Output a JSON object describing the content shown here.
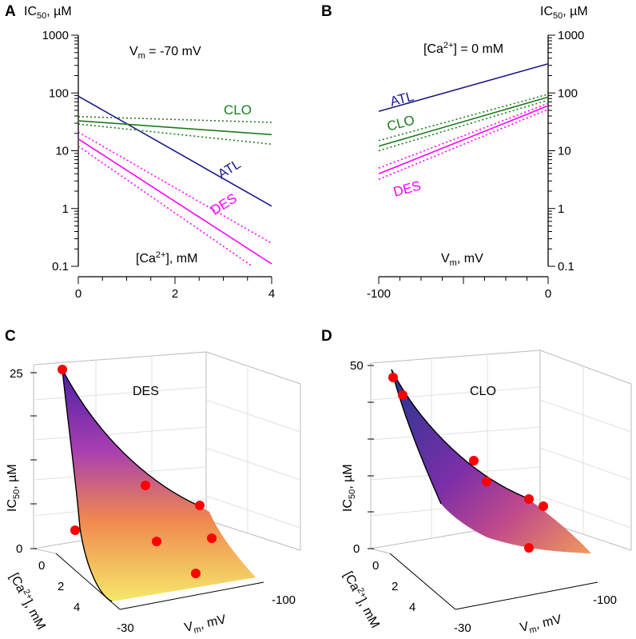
{
  "chart_data": [
    {
      "panel": "A",
      "type": "line",
      "y_scale": "log",
      "ylabel": "IC50, µM",
      "annotation": "Vm = -70 mV",
      "xlabel": "[Ca2+], mM",
      "xlim": [
        0,
        4
      ],
      "ylim": [
        0.1,
        1000
      ],
      "x_ticks": [
        "0",
        "2",
        "4"
      ],
      "y_ticks": [
        "1000",
        "100",
        "10",
        "1",
        "0.1"
      ],
      "series": [
        {
          "name": "ATL",
          "color": "#1a1a8c",
          "style": "solid",
          "points": [
            [
              0,
              88
            ],
            [
              4,
              1.1
            ]
          ]
        },
        {
          "name": "CLO",
          "color": "#1e7a1e",
          "style": "solid",
          "points": [
            [
              0,
              33
            ],
            [
              4,
              19
            ]
          ]
        },
        {
          "name": "CLO-upper",
          "color": "#1e7a1e",
          "style": "dotted",
          "points": [
            [
              0,
              39
            ],
            [
              4,
              31
            ]
          ]
        },
        {
          "name": "CLO-lower",
          "color": "#1e7a1e",
          "style": "dotted",
          "points": [
            [
              0,
              29
            ],
            [
              4,
              13
            ]
          ]
        },
        {
          "name": "DES",
          "color": "#ff00ff",
          "style": "solid",
          "points": [
            [
              0,
              16
            ],
            [
              4,
              0.11
            ]
          ]
        },
        {
          "name": "DES-upper",
          "color": "#ff00ff",
          "style": "dotted",
          "points": [
            [
              0,
              21
            ],
            [
              4,
              0.25
            ]
          ]
        },
        {
          "name": "DES-lower",
          "color": "#ff00ff",
          "style": "dotted",
          "points": [
            [
              0,
              12
            ],
            [
              3.6,
              0.1
            ]
          ]
        }
      ]
    },
    {
      "panel": "B",
      "type": "line",
      "y_scale": "log",
      "ylabel": "IC50, µM",
      "annotation": "[Ca2+] = 0 mM",
      "xlabel": "Vm, mV",
      "xlim": [
        -100,
        0
      ],
      "ylim": [
        0.1,
        1000
      ],
      "x_ticks": [
        "-100",
        "0"
      ],
      "y_ticks": [
        "1000",
        "100",
        "10",
        "1",
        "0.1"
      ],
      "series": [
        {
          "name": "ATL",
          "color": "#1a1a8c",
          "style": "solid",
          "points": [
            [
              -100,
              48
            ],
            [
              0,
              320
            ]
          ]
        },
        {
          "name": "CLO",
          "color": "#1e7a1e",
          "style": "solid",
          "points": [
            [
              -100,
              12
            ],
            [
              0,
              85
            ]
          ]
        },
        {
          "name": "CLO-upper",
          "color": "#1e7a1e",
          "style": "dotted",
          "points": [
            [
              -100,
              15
            ],
            [
              0,
              95
            ]
          ]
        },
        {
          "name": "CLO-lower",
          "color": "#1e7a1e",
          "style": "dotted",
          "points": [
            [
              -100,
              10
            ],
            [
              0,
              75
            ]
          ]
        },
        {
          "name": "DES",
          "color": "#ff00ff",
          "style": "solid",
          "points": [
            [
              -100,
              4
            ],
            [
              0,
              60
            ]
          ]
        },
        {
          "name": "DES-upper",
          "color": "#ff00ff",
          "style": "dotted",
          "points": [
            [
              -100,
              5
            ],
            [
              0,
              66
            ]
          ]
        },
        {
          "name": "DES-lower",
          "color": "#ff00ff",
          "style": "dotted",
          "points": [
            [
              -100,
              3.2
            ],
            [
              0,
              52
            ]
          ]
        }
      ]
    },
    {
      "panel": "C",
      "type": "surface3d",
      "title": "DES",
      "zlabel": "IC50, µM",
      "xlabel": "Vm, mV",
      "ylabel": "[Ca2+], mM",
      "z_ticks": [
        "25",
        "0"
      ],
      "x_ticks": [
        "-30",
        "-100"
      ],
      "y_ticks": [
        "0",
        "2",
        "4"
      ],
      "colormap": [
        "#4b1fa6",
        "#a83fb0",
        "#f0884f",
        "#f5e96a"
      ]
    },
    {
      "panel": "D",
      "type": "surface3d",
      "title": "CLO",
      "zlabel": "IC50, µM",
      "xlabel": "Vm, mV",
      "ylabel": "[Ca2+], mM",
      "z_ticks": [
        "50",
        "0"
      ],
      "x_ticks": [
        "-30",
        "-100"
      ],
      "y_ticks": [
        "0",
        "2",
        "4"
      ],
      "colormap": [
        "#23378f",
        "#7c2fa8",
        "#c04a8a",
        "#f09a5a"
      ]
    }
  ],
  "labels": {
    "panelA": "A",
    "panelB": "B",
    "panelC": "C",
    "panelD": "D",
    "ic50_prefix": "IC",
    "ic50_sub": "50",
    "ic50_suffix": ", µM",
    "vm_ann_prefix": "V",
    "vm_ann_sub": "m",
    "vm_ann_suffix": " = -70 mV",
    "ca_ann_prefix": "[Ca",
    "ca_ann_sup": "2+",
    "ca_ann_suffix": "] = 0 mM",
    "ca_axis_prefix": "[Ca",
    "ca_axis_sup": "2+",
    "ca_axis_suffix": "], mM",
    "vm_axis_prefix": "V",
    "vm_axis_sub": "m",
    "vm_axis_suffix": ", mV",
    "atl": "ATL",
    "clo": "CLO",
    "des": "DES"
  }
}
